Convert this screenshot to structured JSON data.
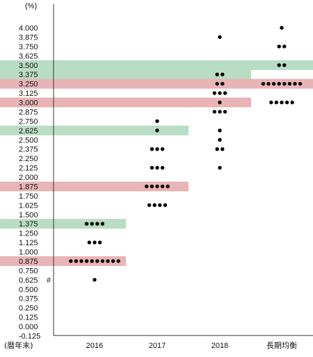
{
  "chart_data": {
    "type": "scatter",
    "subtype": "dot-plot",
    "unit_label": "(%)",
    "x_axis_label": "(暦年末)",
    "categories": [
      "2016",
      "2017",
      "2018",
      "長期均衡"
    ],
    "y_ticks": [
      "4.000",
      "3.875",
      "3.750",
      "3.625",
      "3.500",
      "3.375",
      "3.250",
      "3.125",
      "3.000",
      "2.875",
      "2.750",
      "2.625",
      "2.500",
      "2.375",
      "2.250",
      "2.125",
      "2.000",
      "1.875",
      "1.750",
      "1.625",
      "1.500",
      "1.375",
      "1.250",
      "1.125",
      "1.000",
      "0.875",
      "0.750",
      "0.625",
      "0.500",
      "0.375",
      "0.250",
      "0.125",
      "0.000",
      "-0.125"
    ],
    "ylim": [
      -0.125,
      4.0
    ],
    "annotation": {
      "text": "#",
      "y": 0.625
    },
    "dots": [
      {
        "category": "2016",
        "values": [
          {
            "y": 1.375,
            "count": 4
          },
          {
            "y": 1.125,
            "count": 3
          },
          {
            "y": 0.875,
            "count": 10
          },
          {
            "y": 0.625,
            "count": 1
          }
        ]
      },
      {
        "category": "2017",
        "values": [
          {
            "y": 2.75,
            "count": 1
          },
          {
            "y": 2.625,
            "count": 1
          },
          {
            "y": 2.375,
            "count": 3
          },
          {
            "y": 2.125,
            "count": 3
          },
          {
            "y": 1.875,
            "count": 5
          },
          {
            "y": 1.625,
            "count": 4
          }
        ]
      },
      {
        "category": "2018",
        "values": [
          {
            "y": 3.875,
            "count": 1
          },
          {
            "y": 3.375,
            "count": 2
          },
          {
            "y": 3.25,
            "count": 2
          },
          {
            "y": 3.125,
            "count": 3
          },
          {
            "y": 3.0,
            "count": 1
          },
          {
            "y": 2.875,
            "count": 3
          },
          {
            "y": 2.625,
            "count": 1
          },
          {
            "y": 2.5,
            "count": 1
          },
          {
            "y": 2.375,
            "count": 2
          },
          {
            "y": 2.125,
            "count": 1
          }
        ]
      },
      {
        "category": "長期均衡",
        "values": [
          {
            "y": 4.0,
            "count": 1
          },
          {
            "y": 3.75,
            "count": 2
          },
          {
            "y": 3.5,
            "count": 2
          },
          {
            "y": 3.25,
            "count": 8
          },
          {
            "y": 3.0,
            "count": 5
          }
        ]
      }
    ],
    "bands": [
      {
        "y": 3.5,
        "color": "green",
        "from_category": "2018",
        "to_category": "長期均衡"
      },
      {
        "y": 3.375,
        "color": "green",
        "from_category": "2018",
        "to_category": "2018"
      },
      {
        "y": 3.25,
        "color": "red",
        "from_category": "2018",
        "to_category": "長期均衡"
      },
      {
        "y": 3.0,
        "color": "red",
        "from_category": "2018",
        "to_category": "2018"
      },
      {
        "y": 2.625,
        "color": "green",
        "from_category": "2017",
        "to_category": "2017"
      },
      {
        "y": 1.875,
        "color": "red",
        "from_category": "2017",
        "to_category": "2017"
      },
      {
        "y": 1.375,
        "color": "green",
        "from_category": "2016",
        "to_category": "2016"
      },
      {
        "y": 0.875,
        "color": "red",
        "from_category": "2016",
        "to_category": "2016"
      }
    ],
    "colors": {
      "green": "#b9dcc4",
      "red": "#e8b4b6",
      "dot": "#000000",
      "axis": "#333333"
    },
    "grid": false,
    "legend": "none"
  }
}
